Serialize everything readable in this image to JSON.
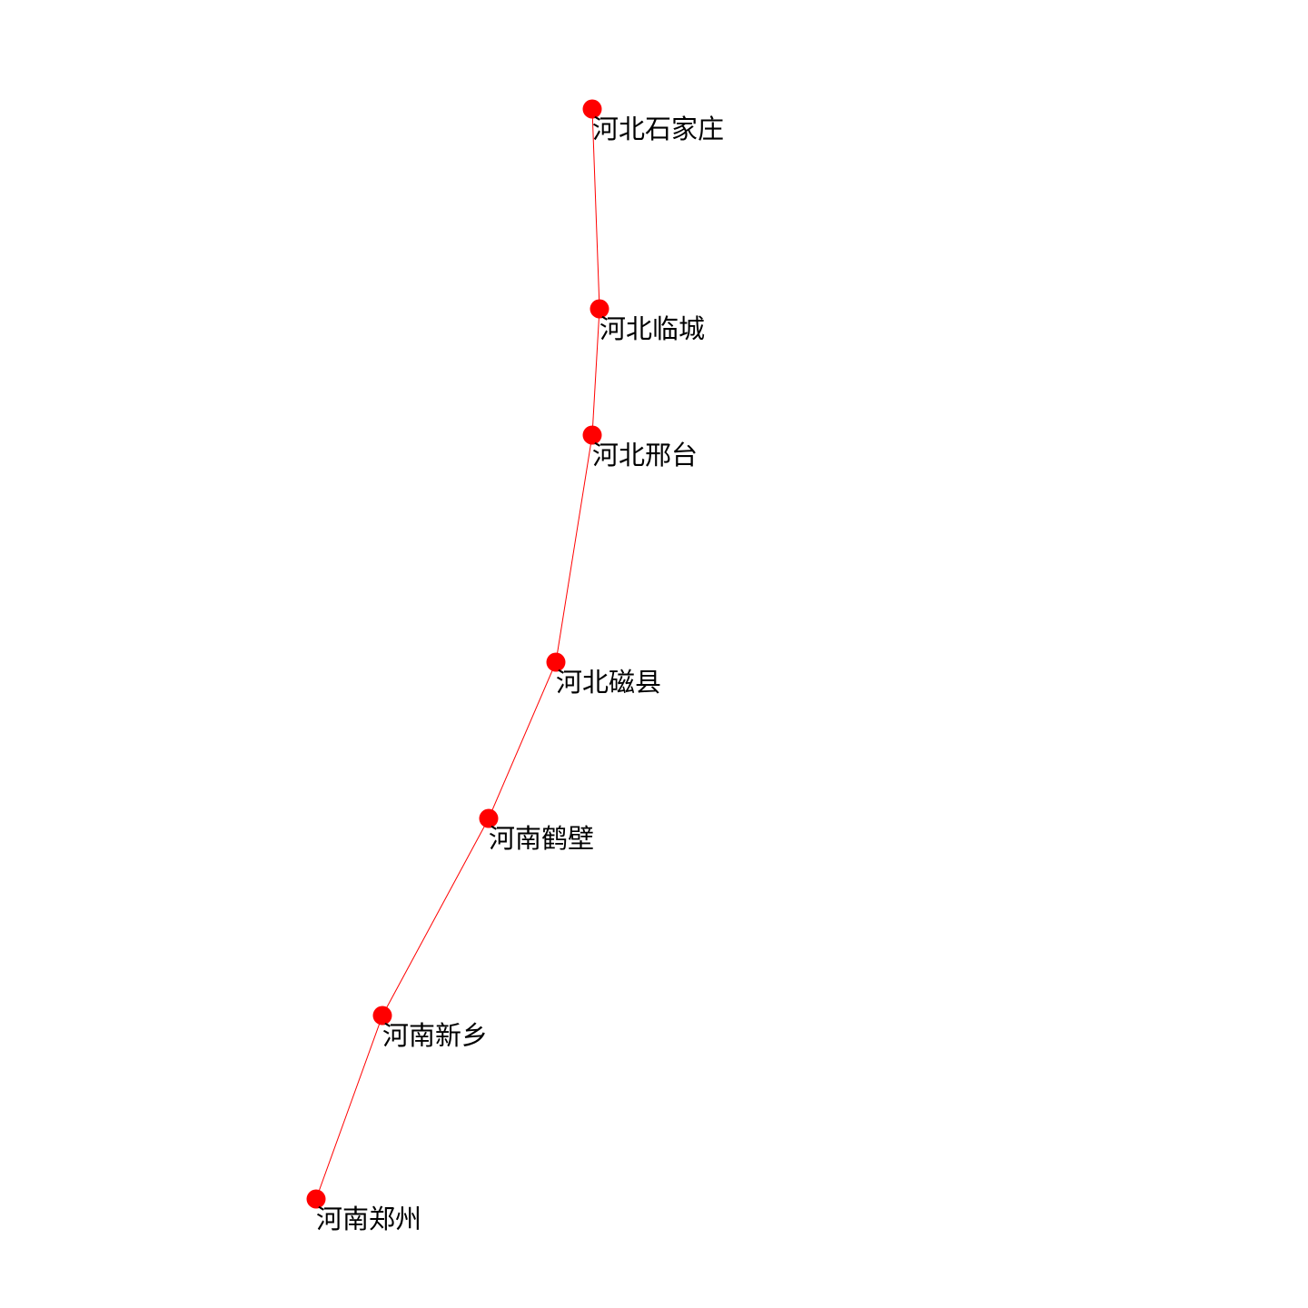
{
  "colors": {
    "node": "#ff0000",
    "edge": "#ff0000",
    "label": "#000000",
    "background": "#ffffff"
  },
  "nodes": [
    {
      "id": "shijiazhuang",
      "label": "河北石家庄"
    },
    {
      "id": "lincheng",
      "label": "河北临城"
    },
    {
      "id": "xingtai",
      "label": "河北邢台"
    },
    {
      "id": "cixian",
      "label": "河北磁县"
    },
    {
      "id": "hebi",
      "label": "河南鹤壁"
    },
    {
      "id": "xinxiang",
      "label": "河南新乡"
    },
    {
      "id": "zhengzhou",
      "label": "河南郑州"
    }
  ],
  "edges": [
    {
      "source": "shijiazhuang",
      "target": "lincheng"
    },
    {
      "source": "lincheng",
      "target": "xingtai"
    },
    {
      "source": "xingtai",
      "target": "cixian"
    },
    {
      "source": "cixian",
      "target": "hebi"
    },
    {
      "source": "hebi",
      "target": "xinxiang"
    },
    {
      "source": "xinxiang",
      "target": "zhengzhou"
    }
  ]
}
